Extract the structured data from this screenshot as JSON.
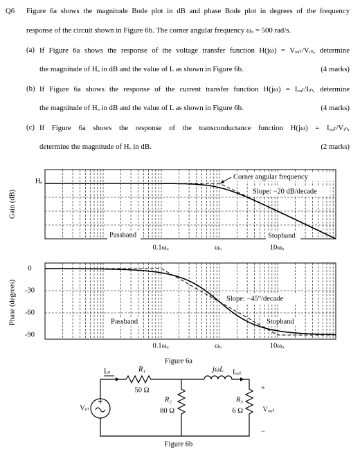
{
  "question": {
    "number": "Q6",
    "lines": [
      "Figure 6a shows the magnitude Bode plot in dB and phase Bode plot in degrees of the frequency",
      "response of the circuit shown in Figure 6b. The corner angular frequency ωₒ = 500 rad/s."
    ],
    "parts": [
      {
        "label": "(a)",
        "lines": [
          "If Figure 6a shows the response of the voltage transfer function H(jω) = Vₒᵤₜ/Vᵢₙ, determine",
          "the magnitude of Hₒ in dB and the value of L as shown in Figure 6b."
        ],
        "marks": "(4 marks)"
      },
      {
        "label": "(b)",
        "lines": [
          "If Figure 6a shows the response of the current transfer function H(jω) = Iₒᵤₜ/Iᵢₙ, determine",
          "the magnitude of Hₒ in dB and the value of L as shown in Figure 6b."
        ],
        "marks": "(4 marks)"
      },
      {
        "label": "(c)",
        "lines": [
          "If Figure 6a shows the response of the transconductance function H(jω) = Iₒᵤₜ/Vᵢₙ,",
          "determine the magnitude of Hₒ in dB."
        ],
        "marks": "(2 marks)"
      }
    ]
  },
  "figure_6a": {
    "caption": "Figure 6a",
    "gain_plot": {
      "y_label": "Gain (dB)",
      "level_label": "Hₒ",
      "corner_note": "Corner angular frequency",
      "slope_note": "Slope: −20 dB/decade",
      "passband": "Passband",
      "stopband": "Stopband",
      "x_labels": [
        "0.1ωₒ",
        "ωₒ",
        "10ωₒ"
      ]
    },
    "phase_plot": {
      "y_label": "Phase (degrees)",
      "y_labels": [
        "0",
        "-30",
        "-60",
        "-90"
      ],
      "slope_note": "Slope: −45°/decade",
      "passband": "Passband",
      "stopband": "Stopband",
      "x_labels": [
        "0.1ωₒ",
        "ωₒ",
        "10ωₒ"
      ]
    }
  },
  "figure_6b": {
    "caption": "Figure 6b",
    "i_in": "Iᵢₙ",
    "r1": "R₁",
    "r1_value": "50 Ω",
    "r2": "R₂",
    "r2_value": "80 Ω",
    "inductor": "jωL",
    "i_out": "Iₒᵤₜ",
    "r3": "R₃",
    "r3_value": "6 Ω",
    "v_in": "Vᵢₙ",
    "v_out": "Vₒᵤₜ",
    "plus": "+",
    "minus": "−"
  }
}
